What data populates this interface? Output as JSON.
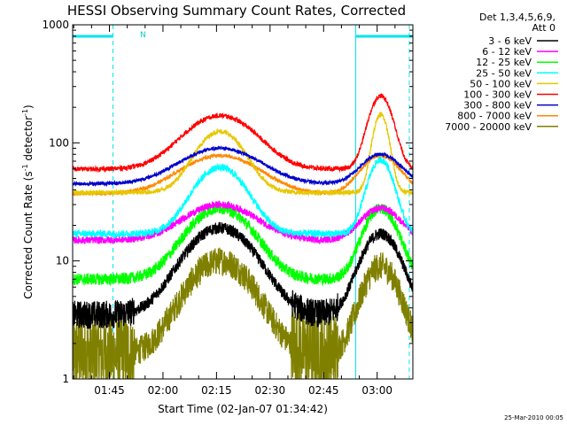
{
  "chart_data": {
    "type": "line",
    "title": "HESSI Observing Summary Count Rates, Corrected",
    "xlabel": "Start Time (02-Jan-07 01:34:42)",
    "ylabel_main": "Corrected Count Rate (s",
    "ylabel_exp1": "-1",
    "ylabel_mid": " detector",
    "ylabel_exp2": "-1",
    "ylabel_end": ")",
    "yscale": "log",
    "ylim": [
      1,
      1000
    ],
    "xlim": [
      "01:34:42",
      "03:10:00"
    ],
    "xticks": [
      "01:45",
      "02:00",
      "02:15",
      "02:30",
      "02:45",
      "03:00"
    ],
    "yticks": [
      "1",
      "10",
      "100",
      "1000"
    ],
    "legend_header1": "Det 1,3,4,5,6,9,",
    "legend_header2": "Att 0",
    "night_marker": "N",
    "timestamp": "25-Mar-2010 00:05",
    "series": [
      {
        "name": "3 - 6 keV",
        "color": "#000000",
        "base": 3.5,
        "peak1": 19,
        "peak2": 17,
        "noise": 0.05,
        "sig1": 8.5,
        "sig2": 4.8
      },
      {
        "name": "6 - 12 keV",
        "color": "#ff00ff",
        "base": 15,
        "peak1": 30,
        "peak2": 28,
        "noise": 0.03,
        "sig1": 9,
        "sig2": 5
      },
      {
        "name": "12 - 25 keV",
        "color": "#00ff00",
        "base": 7,
        "peak1": 28,
        "peak2": 28,
        "noise": 0.05,
        "sig1": 8,
        "sig2": 4.2
      },
      {
        "name": "25 - 50 keV",
        "color": "#00ffff",
        "base": 17,
        "peak1": 62,
        "peak2": 72,
        "noise": 0.03,
        "sig1": 6.5,
        "sig2": 3.2
      },
      {
        "name": "50 - 100 keV",
        "color": "#e6c800",
        "base": 38,
        "peak1": 125,
        "peak2": 175,
        "noise": 0.02,
        "sig1": 6,
        "sig2": 2
      },
      {
        "name": "100 - 300 keV",
        "color": "#ff0000",
        "base": 60,
        "peak1": 170,
        "peak2": 250,
        "noise": 0.02,
        "sig1": 9,
        "sig2": 3
      },
      {
        "name": "300 - 800 keV",
        "color": "#0000cc",
        "base": 45,
        "peak1": 90,
        "peak2": 80,
        "noise": 0.015,
        "sig1": 10,
        "sig2": 5
      },
      {
        "name": "800 - 7000 keV",
        "color": "#ff8800",
        "base": 37,
        "peak1": 78,
        "peak2": 78,
        "noise": 0.015,
        "sig1": 10,
        "sig2": 5
      },
      {
        "name": "7000 - 20000 keV",
        "color": "#808000",
        "base": 1.6,
        "peak1": 10,
        "peak2": 9,
        "noise": 0.12,
        "sig1": 8,
        "sig2": 4.5
      }
    ],
    "night_intervals": [
      [
        "01:34:42",
        "01:46:00"
      ],
      [
        "02:54:00",
        "03:10:00"
      ]
    ],
    "peaks": [
      "02:16",
      "03:01"
    ],
    "low_intervals": [
      [
        "01:34:42",
        "01:52:00"
      ],
      [
        "02:36:00",
        "02:49:00"
      ]
    ]
  }
}
